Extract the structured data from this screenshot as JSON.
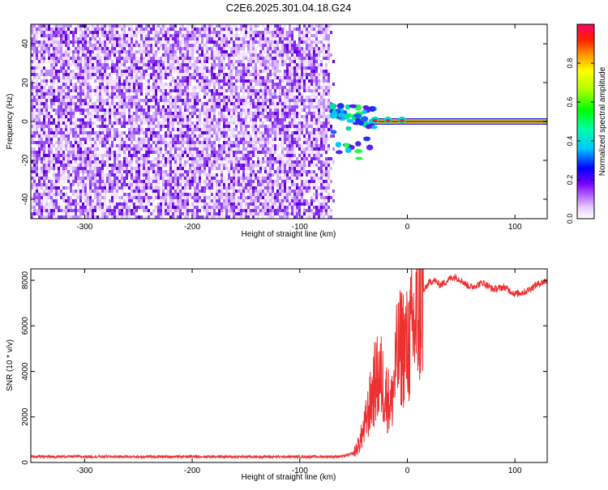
{
  "title": "C2E6.2025.301.04.18.G24",
  "chart_data": [
    {
      "type": "heatmap",
      "xlabel": "Height of straight line (km)",
      "ylabel": "Frequency (Hz)",
      "xlim": [
        -350,
        130
      ],
      "ylim": [
        -50,
        50
      ],
      "x_ticks": [
        -300,
        -200,
        -100,
        0,
        100
      ],
      "y_ticks": [
        -40,
        -20,
        0,
        20,
        40
      ],
      "noise_region_x": [
        -350,
        -68
      ],
      "carrier_frequency": 0,
      "carrier_start_x": -32,
      "transition_region_x": [
        -70,
        -30
      ],
      "colorbar": {
        "label": "Normalized spectral amplitude",
        "range": [
          0.0,
          1.0
        ],
        "ticks": [
          0.0,
          0.2,
          0.4,
          0.6,
          0.8
        ]
      }
    },
    {
      "type": "line",
      "xlabel": "Height of straight line (km)",
      "ylabel": "SNR (10 * v/v)",
      "xlim": [
        -350,
        130
      ],
      "ylim": [
        0,
        8500
      ],
      "x_ticks": [
        -300,
        -200,
        -100,
        0,
        100
      ],
      "y_ticks": [
        0,
        2000,
        4000,
        6000,
        8000
      ],
      "color": "#ee3030",
      "series": [
        {
          "x": [
            -350,
            -300,
            -250,
            -200,
            -150,
            -100,
            -60,
            -50,
            -45,
            -40,
            -35,
            -30,
            -25,
            -20,
            -15,
            -10,
            -5,
            0,
            5,
            10,
            15,
            20,
            25,
            30,
            35,
            40,
            45,
            50,
            55,
            60,
            70,
            80,
            90,
            100,
            110,
            120,
            130
          ],
          "values": [
            250,
            260,
            250,
            260,
            250,
            250,
            260,
            400,
            800,
            1500,
            2500,
            3500,
            3800,
            3000,
            2500,
            4500,
            5200,
            5000,
            5800,
            6500,
            7500,
            7900,
            8000,
            7800,
            7900,
            8100,
            8150,
            8000,
            7800,
            7700,
            7900,
            7600,
            7700,
            7400,
            7500,
            7800,
            8000
          ]
        }
      ]
    }
  ]
}
